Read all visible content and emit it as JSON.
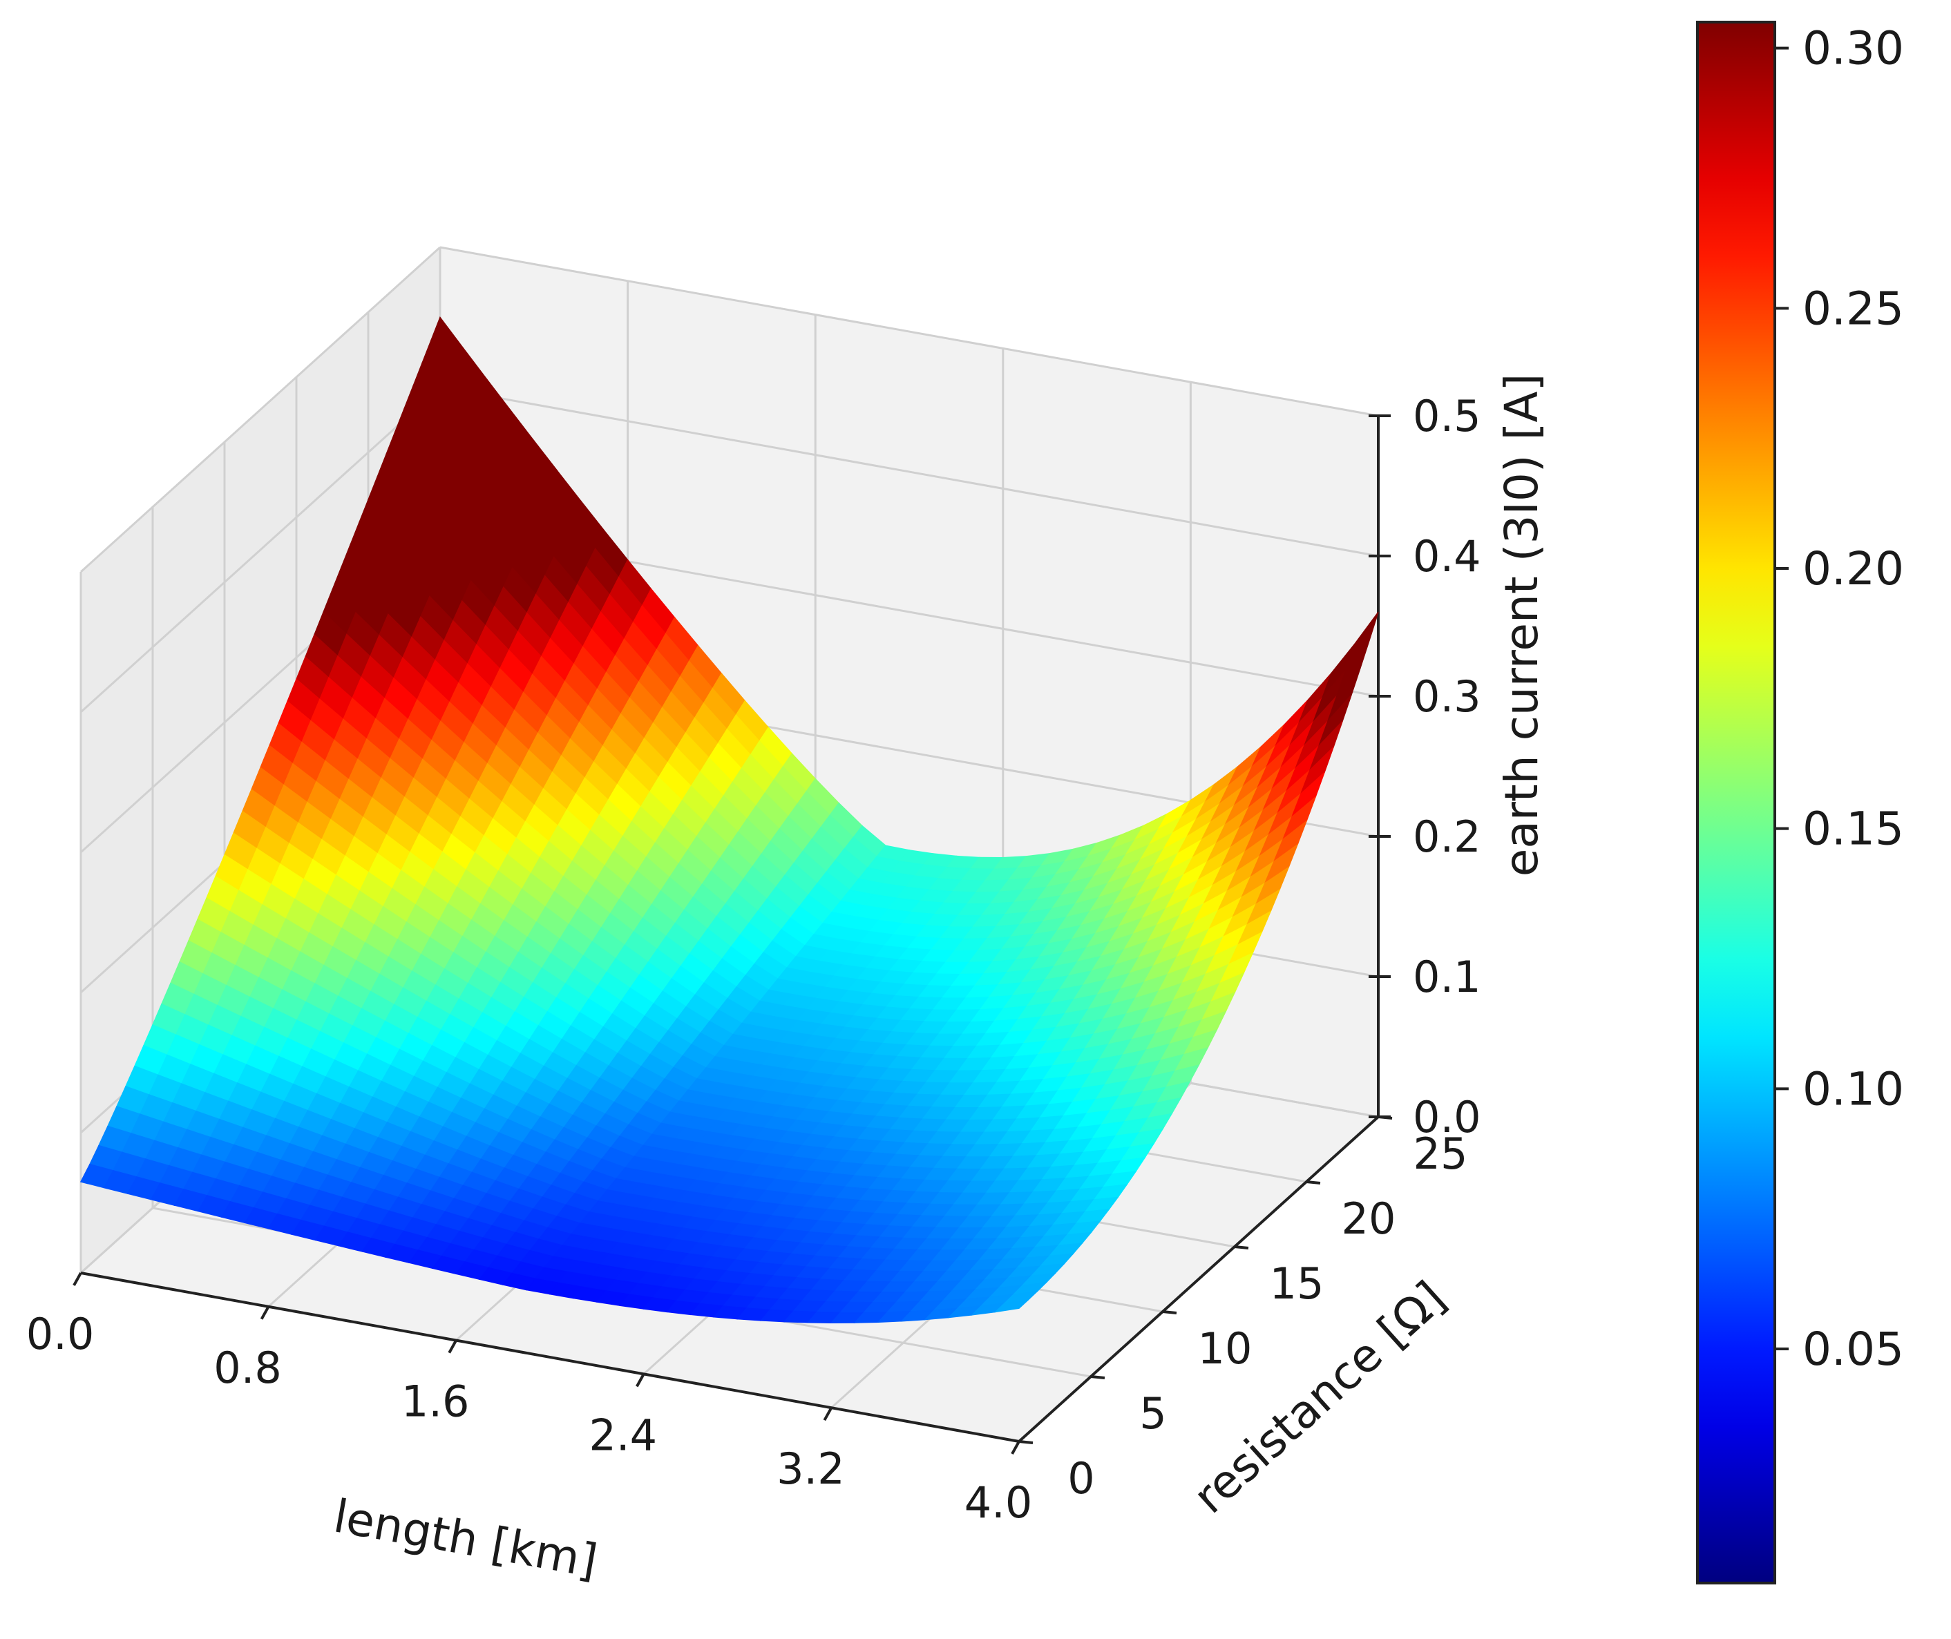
{
  "chart_data": {
    "type": "surface3d",
    "title": "",
    "xlabel": "length [km]",
    "ylabel": "resistance [Ω]",
    "zlabel": "earth current (3I0) [A]",
    "x_ticks": [
      "0.0",
      "0.8",
      "1.6",
      "2.4",
      "3.2",
      "4.0"
    ],
    "y_ticks": [
      "0",
      "5",
      "10",
      "15",
      "20",
      "25"
    ],
    "z_ticks": [
      "0.0",
      "0.1",
      "0.2",
      "0.3",
      "0.4",
      "0.5"
    ],
    "xlim": [
      0,
      4.0
    ],
    "ylim": [
      0,
      25
    ],
    "zlim": [
      0,
      0.5
    ],
    "colormap": "jet",
    "colorbar": {
      "range": [
        0.005,
        0.305
      ],
      "ticks": [
        "0.05",
        "0.10",
        "0.15",
        "0.20",
        "0.25",
        "0.30"
      ],
      "tick_values": [
        0.05,
        0.1,
        0.15,
        0.2,
        0.25,
        0.3
      ]
    },
    "surface": {
      "length_km": [
        0.0,
        0.4,
        0.8,
        1.2,
        1.6,
        2.0,
        2.4,
        2.8,
        3.2,
        3.6,
        4.0
      ],
      "resistance_ohm": [
        0,
        2.5,
        5,
        7.5,
        10,
        12.5,
        15,
        17.5,
        20,
        22.5,
        25
      ],
      "description": "earth current z(length, resistance): high (≈0.45 A) at length 0 / resistance 25, decreasing to a minimum near length 2.0 km, rising again to ≈0.36 A at length 4.0 km / resistance 25; low (≈0.07–0.10 A) at resistance 0"
    }
  }
}
